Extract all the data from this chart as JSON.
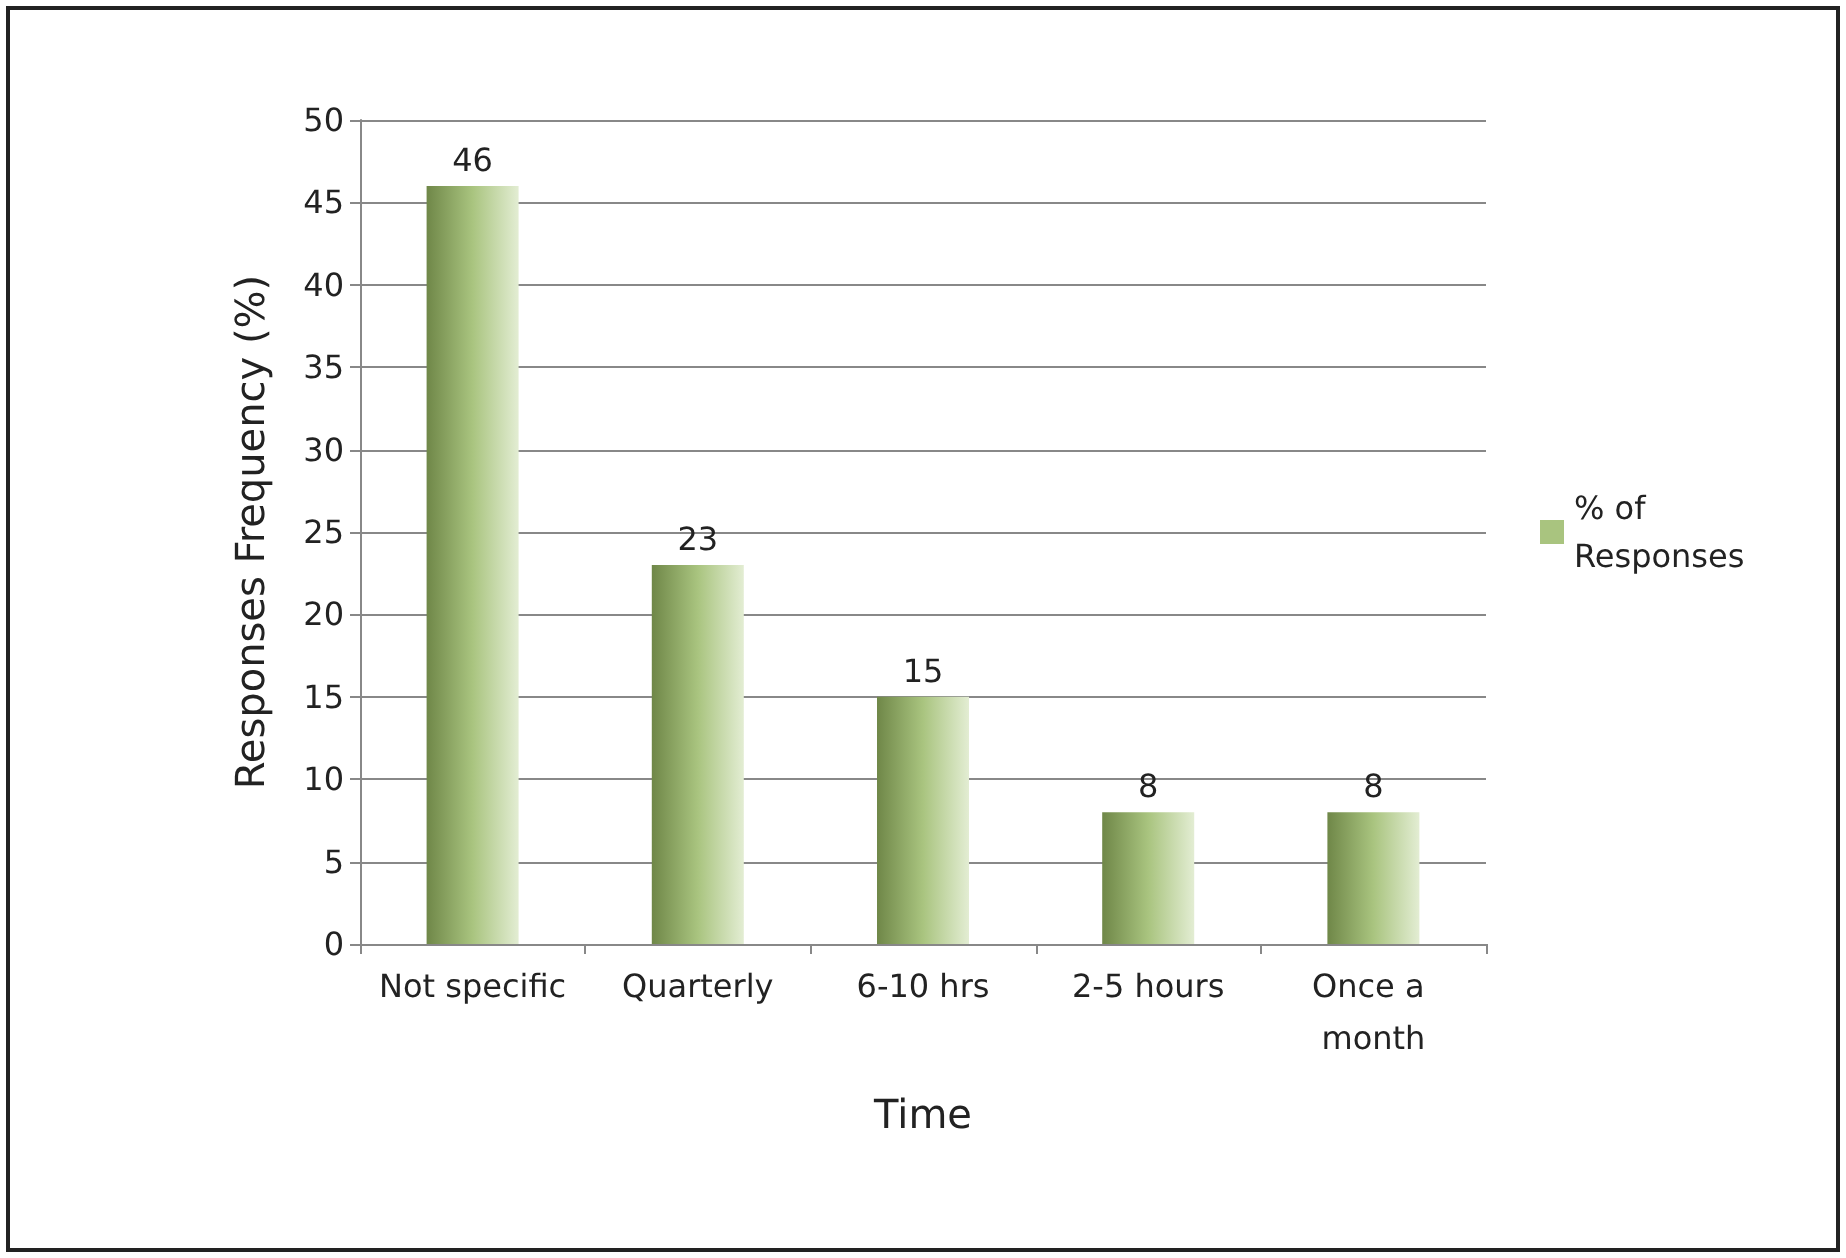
{
  "chart_data": {
    "type": "bar",
    "xlabel": "Time",
    "ylabel": "Responses Frequency (%)",
    "categories": [
      "Not specific",
      "Quarterly",
      "6-10 hrs",
      "2-5 hours",
      "Once a month"
    ],
    "series": [
      {
        "name": "% of Responses",
        "color": "#a9c47f",
        "values": [
          46,
          23,
          15,
          8,
          8
        ]
      }
    ],
    "ylim": [
      0,
      50
    ],
    "yticks": [
      0,
      5,
      10,
      15,
      20,
      25,
      30,
      35,
      40,
      45,
      50
    ],
    "grid": "y",
    "legend": "right",
    "data_labels": true
  }
}
